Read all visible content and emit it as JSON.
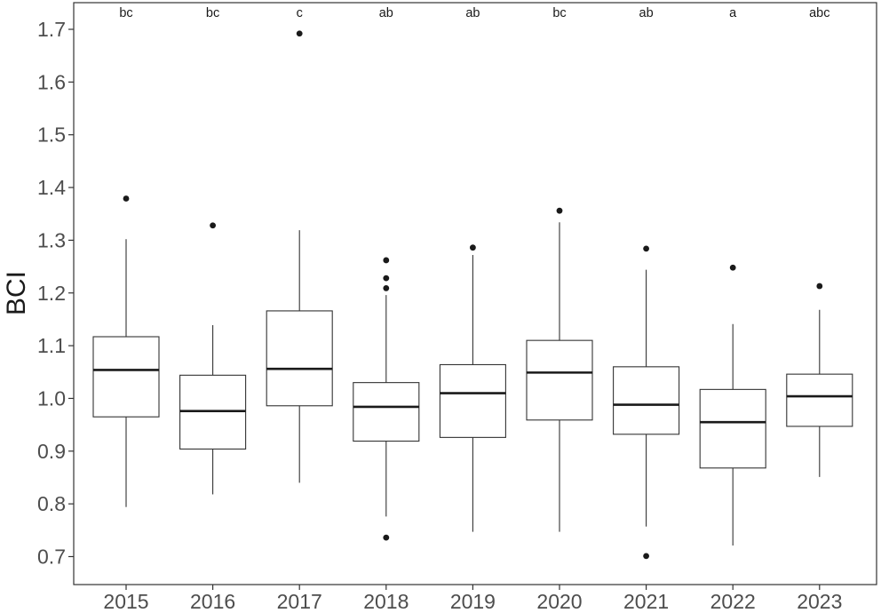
{
  "chart_data": {
    "type": "boxplot",
    "ylabel": "BCI",
    "xlabel": "",
    "ylim": [
      0.655,
      1.755
    ],
    "yticks": [
      0.7,
      0.8,
      0.9,
      1.0,
      1.1,
      1.2,
      1.3,
      1.4,
      1.5,
      1.6,
      1.7
    ],
    "ytick_labels": [
      "0.7",
      "0.8",
      "0.9",
      "1.0",
      "1.1",
      "1.2",
      "1.3",
      "1.4",
      "1.5",
      "1.6",
      "1.7"
    ],
    "grid": false,
    "categories": [
      "2015",
      "2016",
      "2017",
      "2018",
      "2019",
      "2020",
      "2021",
      "2022",
      "2023"
    ],
    "group_letters": [
      "bc",
      "bc",
      "c",
      "ab",
      "ab",
      "bc",
      "ab",
      "a",
      "abc"
    ],
    "boxes": [
      {
        "category": "2015",
        "whisker_low": 0.794,
        "q1": 0.965,
        "median": 1.054,
        "q3": 1.117,
        "whisker_high": 1.302,
        "outliers": [
          1.379
        ]
      },
      {
        "category": "2016",
        "whisker_low": 0.818,
        "q1": 0.904,
        "median": 0.976,
        "q3": 1.044,
        "whisker_high": 1.139,
        "outliers": [
          1.328
        ]
      },
      {
        "category": "2017",
        "whisker_low": 0.84,
        "q1": 0.986,
        "median": 1.056,
        "q3": 1.166,
        "whisker_high": 1.319,
        "outliers": [
          1.692
        ]
      },
      {
        "category": "2018",
        "whisker_low": 0.776,
        "q1": 0.919,
        "median": 0.984,
        "q3": 1.03,
        "whisker_high": 1.196,
        "outliers": [
          1.262,
          1.228,
          1.209,
          0.736
        ]
      },
      {
        "category": "2019",
        "whisker_low": 0.747,
        "q1": 0.926,
        "median": 1.01,
        "q3": 1.064,
        "whisker_high": 1.272,
        "outliers": [
          1.286
        ]
      },
      {
        "category": "2020",
        "whisker_low": 0.747,
        "q1": 0.959,
        "median": 1.049,
        "q3": 1.11,
        "whisker_high": 1.334,
        "outliers": [
          1.356
        ]
      },
      {
        "category": "2021",
        "whisker_low": 0.757,
        "q1": 0.932,
        "median": 0.988,
        "q3": 1.06,
        "whisker_high": 1.244,
        "outliers": [
          1.284,
          0.701
        ]
      },
      {
        "category": "2022",
        "whisker_low": 0.721,
        "q1": 0.868,
        "median": 0.955,
        "q3": 1.017,
        "whisker_high": 1.141,
        "outliers": [
          1.248
        ]
      },
      {
        "category": "2023",
        "whisker_low": 0.851,
        "q1": 0.947,
        "median": 1.004,
        "q3": 1.046,
        "whisker_high": 1.168,
        "outliers": [
          1.213
        ]
      }
    ]
  }
}
